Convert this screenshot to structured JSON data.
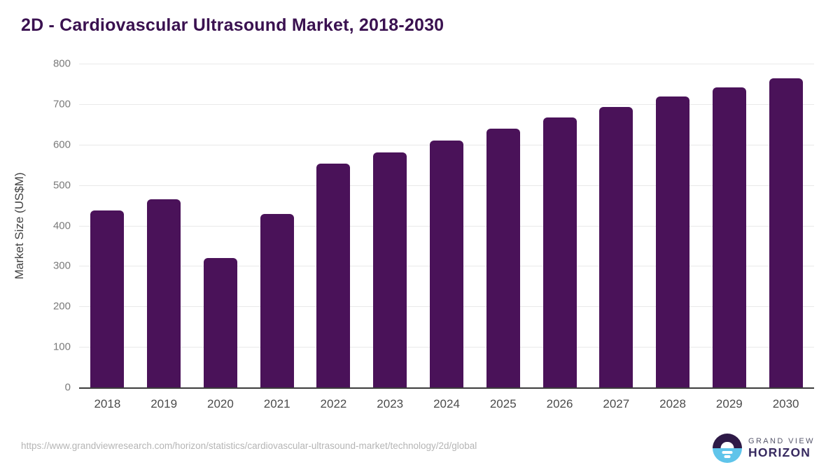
{
  "title": "2D - Cardiovascular Ultrasound Market, 2018-2030",
  "chart_data": {
    "type": "bar",
    "title": "2D - Cardiovascular Ultrasound Market, 2018-2030",
    "categories": [
      "2018",
      "2019",
      "2020",
      "2021",
      "2022",
      "2023",
      "2024",
      "2025",
      "2026",
      "2027",
      "2028",
      "2029",
      "2030"
    ],
    "values": [
      437,
      465,
      320,
      429,
      553,
      581,
      610,
      639,
      667,
      693,
      718,
      742,
      763
    ],
    "xlabel": "",
    "ylabel": "Market Size (US$M)",
    "ylim": [
      0,
      800
    ],
    "y_ticks": [
      0,
      100,
      200,
      300,
      400,
      500,
      600,
      700,
      800
    ],
    "grid": true,
    "legend_position": "none",
    "bar_color": "#4a1259"
  },
  "colors": {
    "bar": "#4a1259",
    "title": "#3a1150",
    "logo_purple": "#2e1a47",
    "logo_blue": "#5fc4ea"
  },
  "footer": {
    "source_url": "https://www.grandviewresearch.com/horizon/statistics/cardiovascular-ultrasound-market/technology/2d/global",
    "logo": {
      "line1": "GRAND VIEW",
      "line2": "HORIZON"
    }
  }
}
